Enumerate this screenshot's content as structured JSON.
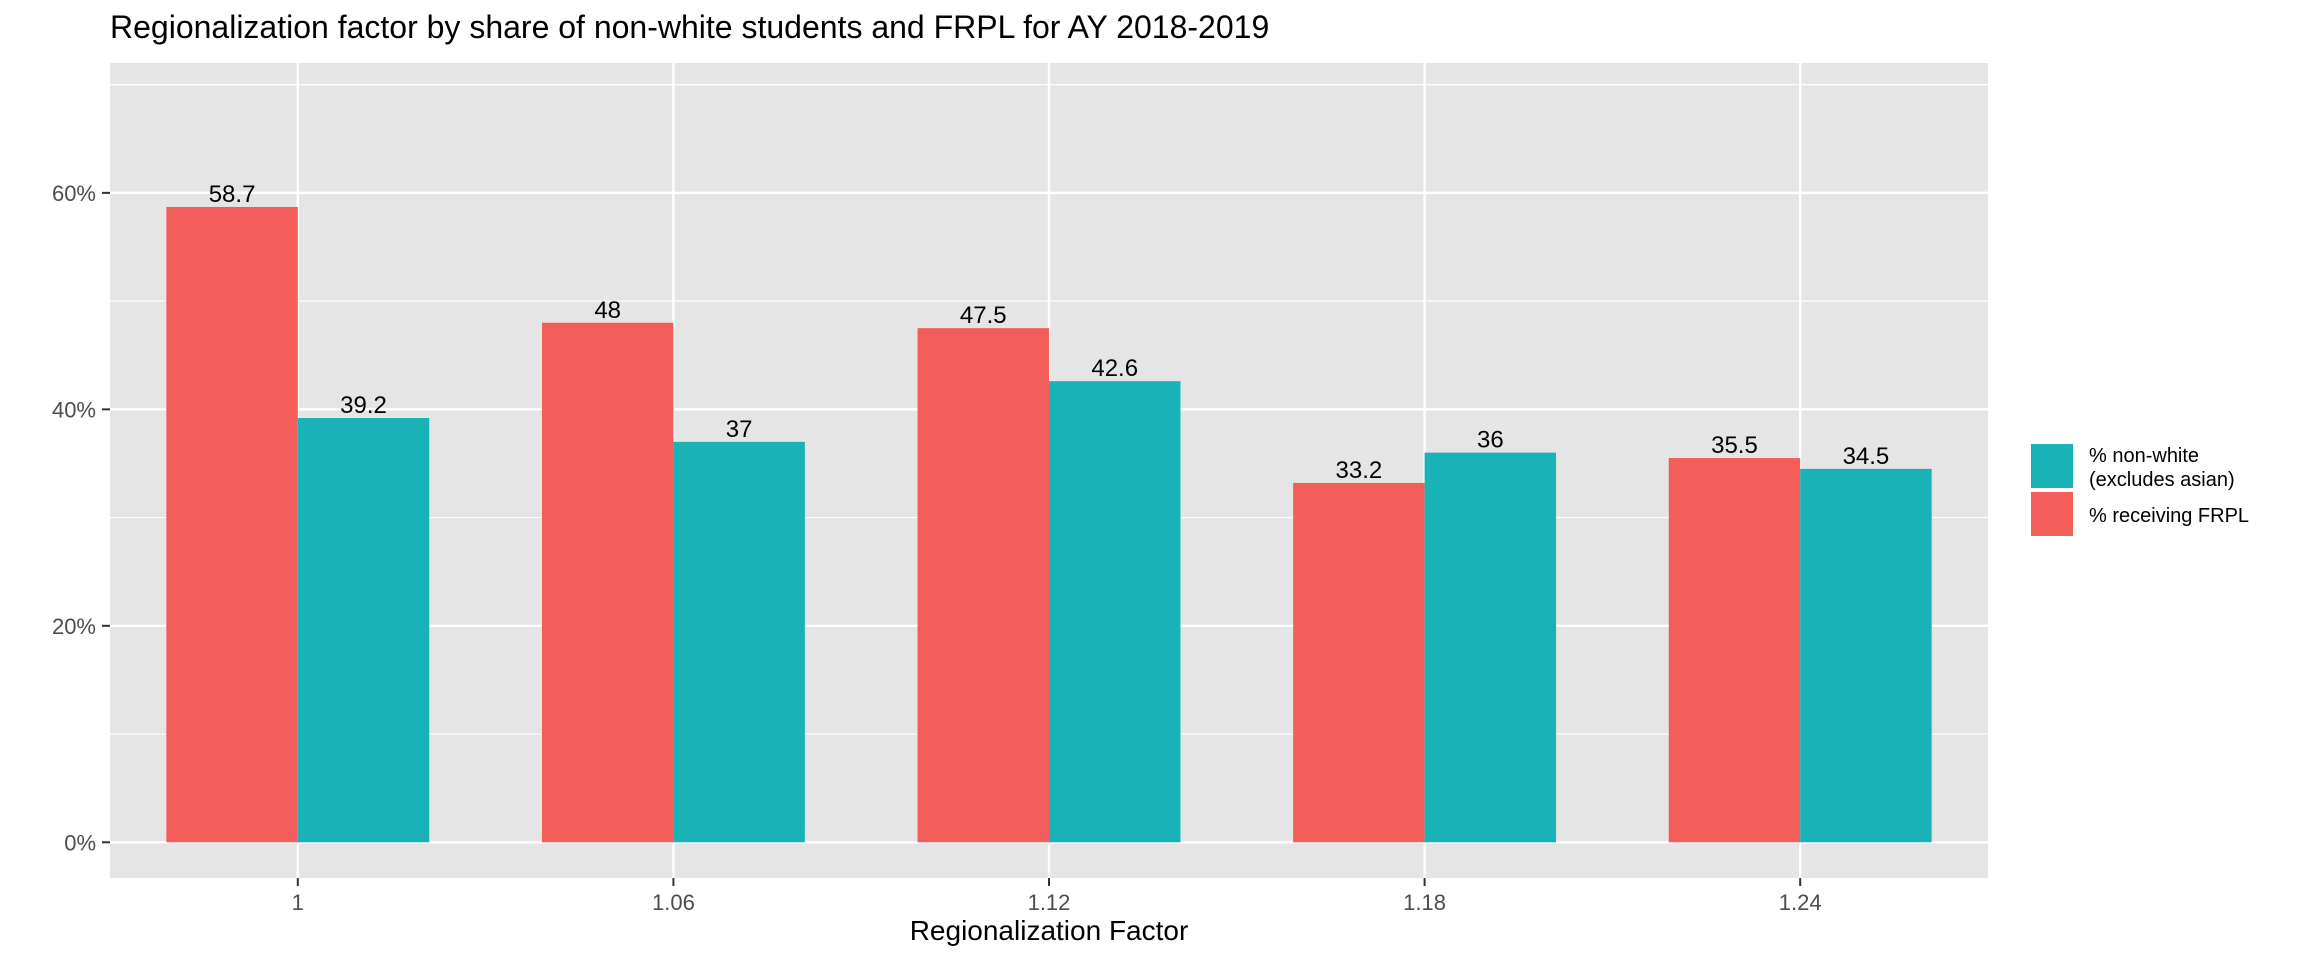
{
  "chart_data": {
    "type": "bar",
    "title": "Regionalization factor by share of non-white students and FRPL for AY 2018-2019",
    "xlabel": "Regionalization Factor",
    "ylabel": "",
    "categories": [
      "1",
      "1.06",
      "1.12",
      "1.18",
      "1.24"
    ],
    "series": [
      {
        "name": "% receiving FRPL",
        "color": "#F35E5A",
        "values": [
          58.7,
          48,
          47.5,
          33.2,
          35.5
        ]
      },
      {
        "name": "% non-white\n(excludes asian)",
        "color": "#19B2B7",
        "values": [
          39.2,
          37,
          42.6,
          36,
          34.5
        ]
      }
    ],
    "ylim": [
      -3.3,
      72
    ],
    "yticks": [
      0,
      20,
      40,
      60
    ],
    "ytick_labels": [
      "0%",
      "20%",
      "40%",
      "60%"
    ],
    "grid": true,
    "legend_position": "right",
    "panel_background": "#E5E5E5",
    "grid_color": "#FFFFFF"
  }
}
